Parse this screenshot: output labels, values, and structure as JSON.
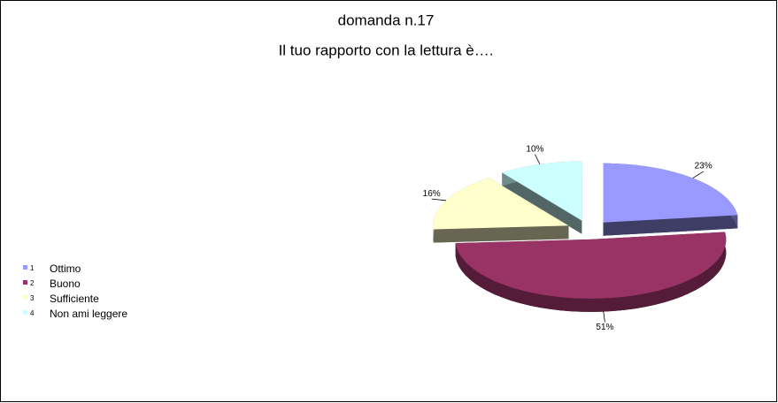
{
  "chart_data": {
    "type": "pie",
    "title": "domanda n.17",
    "subtitle": "Il tuo rapporto con la lettura è….",
    "legend_keys": [
      "1",
      "2",
      "3",
      "4"
    ],
    "categories": [
      "Ottimo",
      "Buono",
      "Sufficiente",
      "Non ami leggere"
    ],
    "values": [
      23,
      51,
      16,
      10
    ],
    "value_labels": [
      "23%",
      "51%",
      "16%",
      "10%"
    ],
    "colors": [
      "#9999ff",
      "#993366",
      "#ffffcc",
      "#ccffff"
    ],
    "legend": "left"
  }
}
